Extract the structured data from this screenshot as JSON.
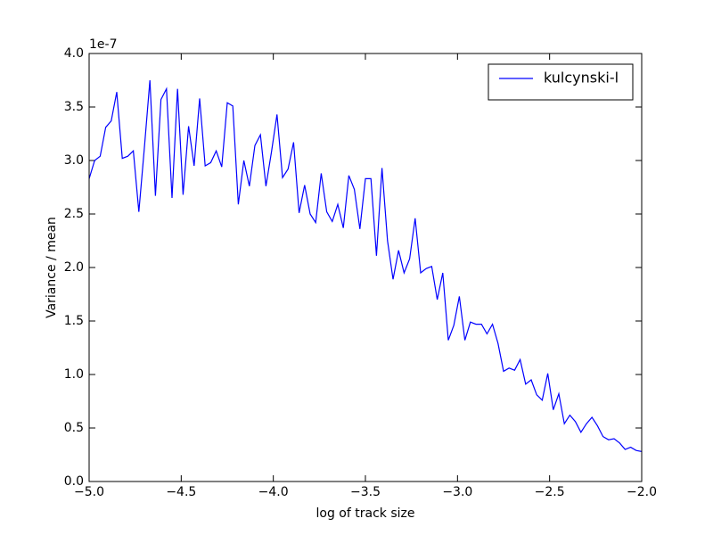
{
  "chart_data": {
    "type": "line",
    "xlabel": "log of track size",
    "ylabel": "Variance / mean",
    "y_offset_label": "1e-7",
    "xlim": [
      -5.0,
      -2.0
    ],
    "ylim": [
      0,
      4.0
    ],
    "xticks": [
      {
        "value": -5.0,
        "label": "−5.0"
      },
      {
        "value": -4.5,
        "label": "−4.5"
      },
      {
        "value": -4.0,
        "label": "−4.0"
      },
      {
        "value": -3.5,
        "label": "−3.5"
      },
      {
        "value": -3.0,
        "label": "−3.0"
      },
      {
        "value": -2.5,
        "label": "−2.5"
      },
      {
        "value": -2.0,
        "label": "−2.0"
      }
    ],
    "yticks": [
      {
        "value": 0,
        "label": "0.0"
      },
      {
        "value": 0.5,
        "label": "0.5"
      },
      {
        "value": 1,
        "label": "1.0"
      },
      {
        "value": 1.5,
        "label": "1.5"
      },
      {
        "value": 2,
        "label": "2.0"
      },
      {
        "value": 2.5,
        "label": "2.5"
      },
      {
        "value": 3,
        "label": "3.0"
      },
      {
        "value": 3.5,
        "label": "3.5"
      },
      {
        "value": 4,
        "label": "4.0"
      }
    ],
    "grid": false,
    "legend": "upper right",
    "x": [
      -5.0,
      -4.97,
      -4.94,
      -4.91,
      -4.88,
      -4.85,
      -4.82,
      -4.79,
      -4.76,
      -4.73,
      -4.7,
      -4.67,
      -4.64,
      -4.61,
      -4.58,
      -4.55,
      -4.52,
      -4.49,
      -4.46,
      -4.43,
      -4.4,
      -4.37,
      -4.34,
      -4.31,
      -4.28,
      -4.25,
      -4.22,
      -4.19,
      -4.16,
      -4.13,
      -4.1,
      -4.07,
      -4.04,
      -4.01,
      -3.98,
      -3.95,
      -3.92,
      -3.89,
      -3.86,
      -3.83,
      -3.8,
      -3.77,
      -3.74,
      -3.71,
      -3.68,
      -3.65,
      -3.62,
      -3.59,
      -3.56,
      -3.53,
      -3.5,
      -3.47,
      -3.44,
      -3.41,
      -3.38,
      -3.35,
      -3.32,
      -3.29,
      -3.26,
      -3.23,
      -3.2,
      -3.17,
      -3.14,
      -3.11,
      -3.08,
      -3.05,
      -3.02,
      -2.99,
      -2.96,
      -2.93,
      -2.9,
      -2.87,
      -2.84,
      -2.81,
      -2.78,
      -2.75,
      -2.72,
      -2.69,
      -2.66,
      -2.63,
      -2.6,
      -2.57,
      -2.54,
      -2.51,
      -2.48,
      -2.45,
      -2.42,
      -2.39,
      -2.36,
      -2.33,
      -2.3,
      -2.27,
      -2.24,
      -2.21,
      -2.18,
      -2.15,
      -2.12,
      -2.09,
      -2.06,
      -2.03,
      -2.0
    ],
    "series": [
      {
        "name": "kulcynski-l",
        "color": "#0000ff",
        "values": [
          2.83,
          3.0,
          3.04,
          3.31,
          3.37,
          3.64,
          3.02,
          3.04,
          3.09,
          2.52,
          3.12,
          3.75,
          2.67,
          3.57,
          3.67,
          2.65,
          3.67,
          2.68,
          3.32,
          2.95,
          3.58,
          2.95,
          2.98,
          3.09,
          2.94,
          3.54,
          3.51,
          2.59,
          3.0,
          2.76,
          3.14,
          3.24,
          2.76,
          3.08,
          3.43,
          2.84,
          2.92,
          3.17,
          2.51,
          2.77,
          2.5,
          2.42,
          2.88,
          2.52,
          2.43,
          2.59,
          2.37,
          2.86,
          2.73,
          2.36,
          2.83,
          2.83,
          2.11,
          2.93,
          2.25,
          1.89,
          2.16,
          1.95,
          2.08,
          2.46,
          1.95,
          1.99,
          2.01,
          1.7,
          1.95,
          1.32,
          1.46,
          1.73,
          1.32,
          1.49,
          1.47,
          1.47,
          1.38,
          1.47,
          1.29,
          1.03,
          1.06,
          1.04,
          1.14,
          0.91,
          0.95,
          0.81,
          0.76,
          1.01,
          0.67,
          0.82,
          0.54,
          0.62,
          0.56,
          0.46,
          0.54,
          0.6,
          0.52,
          0.42,
          0.39,
          0.4,
          0.36,
          0.3,
          0.32,
          0.29,
          0.28
        ]
      }
    ]
  }
}
